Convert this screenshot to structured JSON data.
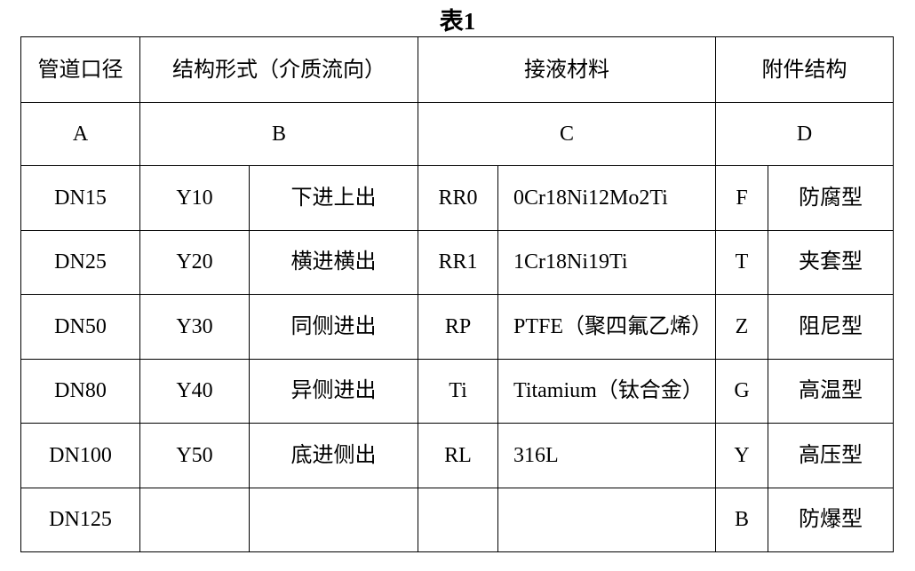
{
  "title": "表1",
  "headers": [
    "管道口径",
    "结构形式（介质流向）",
    "接液材料",
    "附件结构"
  ],
  "codes": [
    "A",
    "B",
    "C",
    "D"
  ],
  "rows": [
    [
      "DN15",
      "Y10",
      "下进上出",
      "RR0",
      "0Cr18Ni12Mo2Ti",
      "F",
      "防腐型"
    ],
    [
      "DN25",
      "Y20",
      "横进横出",
      "RR1",
      "1Cr18Ni19Ti",
      "T",
      "夹套型"
    ],
    [
      "DN50",
      "Y30",
      "同侧进出",
      "RP",
      "PTFE（聚四氟乙烯）",
      "Z",
      "阻尼型"
    ],
    [
      "DN80",
      "Y40",
      "异侧进出",
      "Ti",
      "Titamium（钛合金）",
      "G",
      "高温型"
    ],
    [
      "DN100",
      "Y50",
      "底进侧出",
      "RL",
      "316L",
      "Y",
      "高压型"
    ],
    [
      "DN125",
      "",
      "",
      "",
      "",
      "B",
      "防爆型"
    ]
  ]
}
